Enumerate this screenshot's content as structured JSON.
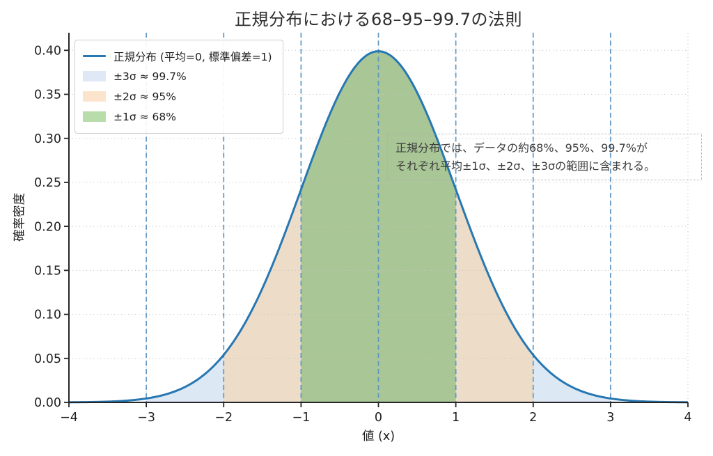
{
  "chart_data": {
    "type": "area",
    "title": "正規分布における68–95–99.7の法則",
    "xlabel": "値 (x)",
    "ylabel": "確率密度",
    "distribution": {
      "name": "normal",
      "mean": 0,
      "std": 1,
      "peak_density": 0.3989
    },
    "curve_color": "#2677b2",
    "xlim": [
      -4,
      4
    ],
    "ylim": [
      0,
      0.42
    ],
    "xtick_values": [
      -4,
      -3,
      -2,
      -1,
      0,
      1,
      2,
      3,
      4
    ],
    "xtick_labels": [
      "−4",
      "−3",
      "−2",
      "−1",
      "0",
      "1",
      "2",
      "3",
      "4"
    ],
    "ytick_values": [
      0.0,
      0.05,
      0.1,
      0.15,
      0.2,
      0.25,
      0.3,
      0.35,
      0.4
    ],
    "ytick_labels": [
      "0.00",
      "0.05",
      "0.10",
      "0.15",
      "0.20",
      "0.25",
      "0.30",
      "0.35",
      "0.40"
    ],
    "bands": [
      {
        "sigma": "±3σ",
        "range": [
          -3,
          3
        ],
        "coverage": "99.7%",
        "fill": "#dce8f4"
      },
      {
        "sigma": "±2σ",
        "range": [
          -2,
          2
        ],
        "coverage": "95%",
        "fill": "#edddc8"
      },
      {
        "sigma": "±1σ",
        "range": [
          -1,
          1
        ],
        "coverage": "68%",
        "fill": "#a9c696"
      }
    ],
    "sigma_line_positions": [
      -3,
      -2,
      -1,
      0,
      1,
      2,
      3
    ],
    "sigma_line_color": "#5793c3",
    "grid": {
      "show": true,
      "style": "dotted",
      "color": "#c6c6c6"
    },
    "legend_position": "upper left"
  },
  "legend": {
    "line": {
      "label": "正規分布 (平均=0, 標準偏差=1)",
      "color": "#2677b2"
    },
    "bands": [
      {
        "label": "±3σ ≈ 99.7%",
        "color": "#dfe9f5"
      },
      {
        "label": "±2σ ≈ 95%",
        "color": "#fce4cc"
      },
      {
        "label": "±1σ ≈ 68%",
        "color": "#b9dcab"
      }
    ]
  },
  "annotation": {
    "line1": "正規分布では、データの約68%、95%、99.7%が",
    "line2": "それぞれ平均±1σ、±2σ、±3σの範囲に含まれる。"
  }
}
